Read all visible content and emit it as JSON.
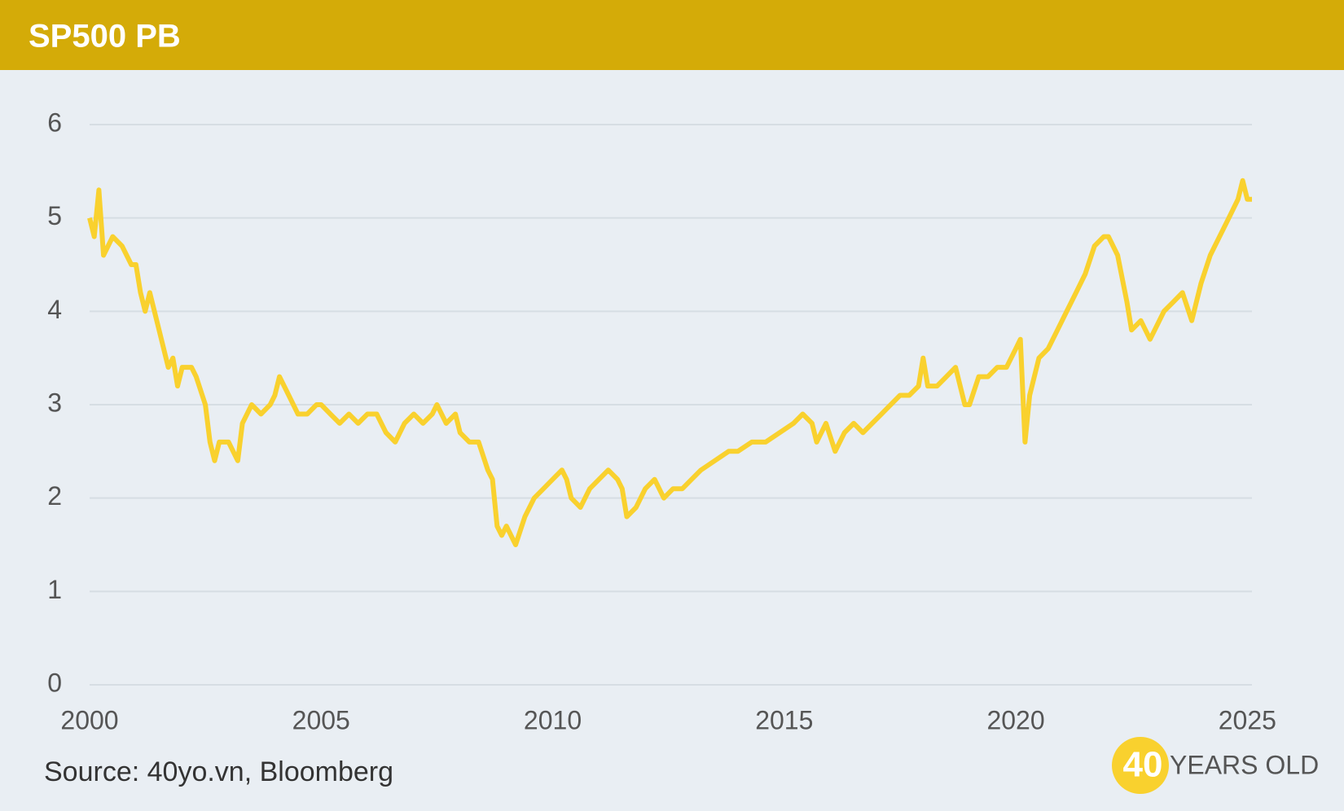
{
  "chart_data": {
    "type": "line",
    "title": "SP500 PB",
    "source": "Source: 40yo.vn, Bloomberg",
    "logo": {
      "number": "40",
      "text": "YEARS OLD"
    },
    "color": "#f9d12e",
    "grid": true,
    "xlim": [
      2000,
      2025.1
    ],
    "xticks": [
      2000,
      2005,
      2010,
      2015,
      2020,
      2025
    ],
    "ylim": [
      0,
      6
    ],
    "yticks": [
      0,
      1,
      2,
      3,
      4,
      5,
      6
    ],
    "x": [
      2000.0,
      2000.1,
      2000.2,
      2000.3,
      2000.5,
      2000.7,
      2000.9,
      2001.0,
      2001.1,
      2001.2,
      2001.3,
      2001.5,
      2001.7,
      2001.8,
      2001.9,
      2002.0,
      2002.2,
      2002.3,
      2002.5,
      2002.6,
      2002.7,
      2002.8,
      2003.0,
      2003.2,
      2003.3,
      2003.5,
      2003.7,
      2003.9,
      2004.0,
      2004.1,
      2004.3,
      2004.5,
      2004.7,
      2004.9,
      2005.0,
      2005.2,
      2005.4,
      2005.6,
      2005.8,
      2006.0,
      2006.2,
      2006.4,
      2006.6,
      2006.8,
      2007.0,
      2007.2,
      2007.4,
      2007.5,
      2007.7,
      2007.9,
      2008.0,
      2008.2,
      2008.4,
      2008.6,
      2008.7,
      2008.8,
      2008.9,
      2009.0,
      2009.2,
      2009.4,
      2009.6,
      2009.8,
      2010.0,
      2010.2,
      2010.3,
      2010.4,
      2010.6,
      2010.8,
      2011.0,
      2011.2,
      2011.4,
      2011.5,
      2011.6,
      2011.8,
      2012.0,
      2012.2,
      2012.4,
      2012.6,
      2012.8,
      2013.0,
      2013.2,
      2013.5,
      2013.8,
      2014.0,
      2014.3,
      2014.6,
      2014.9,
      2015.2,
      2015.4,
      2015.6,
      2015.7,
      2015.9,
      2016.1,
      2016.3,
      2016.5,
      2016.7,
      2016.9,
      2017.1,
      2017.3,
      2017.5,
      2017.7,
      2017.9,
      2018.0,
      2018.1,
      2018.3,
      2018.5,
      2018.7,
      2018.9,
      2019.0,
      2019.2,
      2019.4,
      2019.6,
      2019.8,
      2020.0,
      2020.1,
      2020.2,
      2020.3,
      2020.5,
      2020.7,
      2020.9,
      2021.1,
      2021.3,
      2021.5,
      2021.7,
      2021.9,
      2022.0,
      2022.2,
      2022.4,
      2022.5,
      2022.7,
      2022.9,
      2023.0,
      2023.2,
      2023.4,
      2023.6,
      2023.8,
      2024.0,
      2024.2,
      2024.4,
      2024.6,
      2024.8,
      2024.9,
      2025.0,
      2025.1
    ],
    "series": [
      {
        "name": "SP500 PB",
        "values": [
          5.0,
          4.8,
          5.3,
          4.6,
          4.8,
          4.7,
          4.5,
          4.5,
          4.2,
          4.0,
          4.2,
          3.8,
          3.4,
          3.5,
          3.2,
          3.4,
          3.4,
          3.3,
          3.0,
          2.6,
          2.4,
          2.6,
          2.6,
          2.4,
          2.8,
          3.0,
          2.9,
          3.0,
          3.1,
          3.3,
          3.1,
          2.9,
          2.9,
          3.0,
          3.0,
          2.9,
          2.8,
          2.9,
          2.8,
          2.9,
          2.9,
          2.7,
          2.6,
          2.8,
          2.9,
          2.8,
          2.9,
          3.0,
          2.8,
          2.9,
          2.7,
          2.6,
          2.6,
          2.3,
          2.2,
          1.7,
          1.6,
          1.7,
          1.5,
          1.8,
          2.0,
          2.1,
          2.2,
          2.3,
          2.2,
          2.0,
          1.9,
          2.1,
          2.2,
          2.3,
          2.2,
          2.1,
          1.8,
          1.9,
          2.1,
          2.2,
          2.0,
          2.1,
          2.1,
          2.2,
          2.3,
          2.4,
          2.5,
          2.5,
          2.6,
          2.6,
          2.7,
          2.8,
          2.9,
          2.8,
          2.6,
          2.8,
          2.5,
          2.7,
          2.8,
          2.7,
          2.8,
          2.9,
          3.0,
          3.1,
          3.1,
          3.2,
          3.5,
          3.2,
          3.2,
          3.3,
          3.4,
          3.0,
          3.0,
          3.3,
          3.3,
          3.4,
          3.4,
          3.6,
          3.7,
          2.6,
          3.1,
          3.5,
          3.6,
          3.8,
          4.0,
          4.2,
          4.4,
          4.7,
          4.8,
          4.8,
          4.6,
          4.1,
          3.8,
          3.9,
          3.7,
          3.8,
          4.0,
          4.1,
          4.2,
          3.9,
          4.3,
          4.6,
          4.8,
          5.0,
          5.2,
          5.4,
          5.2,
          5.2
        ]
      }
    ]
  }
}
